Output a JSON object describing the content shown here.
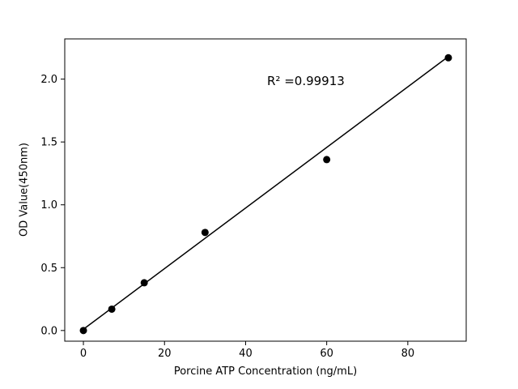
{
  "chart_data": {
    "type": "scatter",
    "title": "",
    "xlabel": "Porcine ATP Concentration (ng/mL)",
    "ylabel": "OD Value(450nm)",
    "annotation": "R² =0.99913",
    "xlim": [
      -4.6,
      94.4
    ],
    "ylim": [
      -0.085,
      2.32
    ],
    "x_ticks": [
      0,
      20,
      40,
      60,
      80
    ],
    "x_tick_labels": [
      "0",
      "20",
      "40",
      "60",
      "80"
    ],
    "y_ticks": [
      0.0,
      0.5,
      1.0,
      1.5,
      2.0
    ],
    "y_tick_labels": [
      "0.0",
      "0.5",
      "1.0",
      "1.5",
      "2.0"
    ],
    "points": [
      {
        "x": 0,
        "y": 0.0
      },
      {
        "x": 7,
        "y": 0.17
      },
      {
        "x": 15,
        "y": 0.38
      },
      {
        "x": 30,
        "y": 0.78
      },
      {
        "x": 60,
        "y": 1.36
      },
      {
        "x": 90,
        "y": 2.17
      }
    ],
    "fit_line": {
      "x": [
        0,
        90
      ],
      "y": [
        0.01,
        2.18
      ]
    },
    "point_color": "#000000",
    "line_color": "#000000",
    "background_color": "#ffffff",
    "grid": false,
    "legend": "none"
  }
}
